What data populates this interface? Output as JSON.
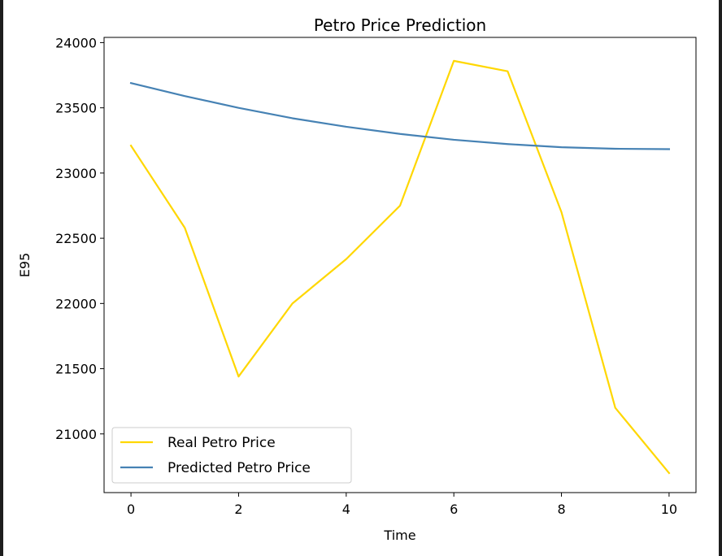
{
  "chart_data": {
    "type": "line",
    "title": "Petro Price Prediction",
    "xlabel": "Time",
    "ylabel": "E95",
    "xlim": [
      -0.5,
      10.5
    ],
    "ylim": [
      20550,
      24040
    ],
    "xticks": [
      0,
      2,
      4,
      6,
      8,
      10
    ],
    "yticks": [
      21000,
      21500,
      22000,
      22500,
      23000,
      23500,
      24000
    ],
    "grid": false,
    "legend_position": "lower-left",
    "x": [
      0,
      1,
      2,
      3,
      4,
      5,
      6,
      7,
      8,
      9,
      10
    ],
    "series": [
      {
        "name": "Real Petro Price",
        "color": "#FFD700",
        "values": [
          23210,
          22580,
          21440,
          22000,
          22340,
          22750,
          23860,
          23780,
          22700,
          21200,
          20700
        ]
      },
      {
        "name": "Predicted Petro Price",
        "color": "#4682B4",
        "values": [
          23690,
          23590,
          23500,
          23420,
          23355,
          23300,
          23255,
          23222,
          23198,
          23186,
          23183
        ]
      }
    ]
  }
}
